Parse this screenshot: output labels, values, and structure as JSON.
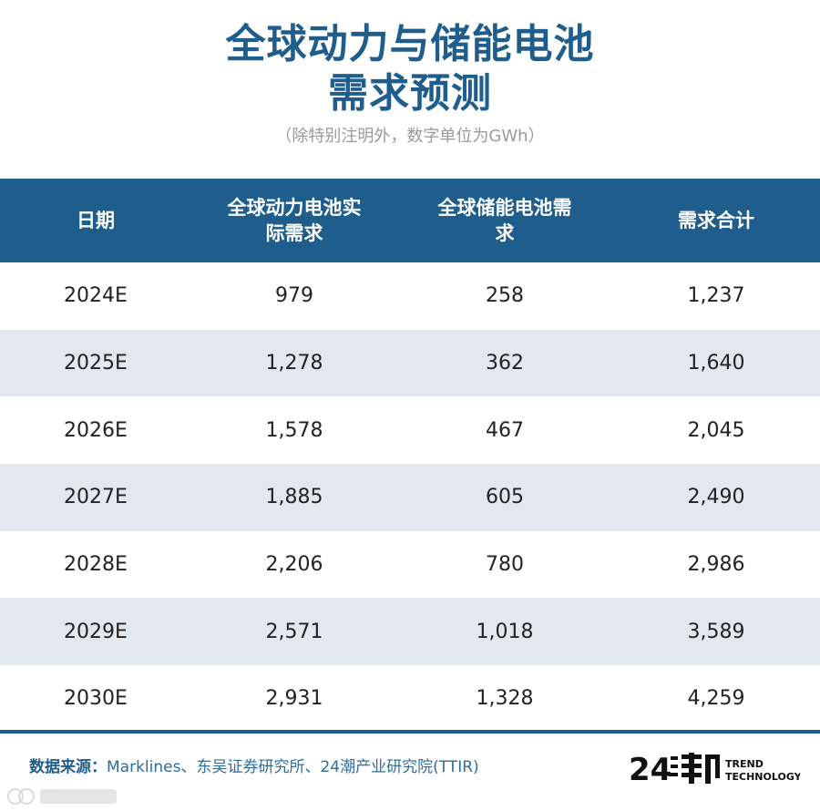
{
  "header": {
    "title_line1": "全球动力与储能电池",
    "title_line2": "需求预测",
    "subtitle": "（除特别注明外，数字单位为GWh）"
  },
  "chart_data": {
    "type": "table",
    "title": "全球动力与储能电池需求预测",
    "unit": "GWh",
    "columns": [
      "日期",
      "全球动力电池实际需求",
      "全球储能电池需求",
      "需求合计"
    ],
    "rows": [
      [
        "2024E",
        "979",
        "258",
        "1,237"
      ],
      [
        "2025E",
        "1,278",
        "362",
        "1,640"
      ],
      [
        "2026E",
        "1,578",
        "467",
        "2,045"
      ],
      [
        "2027E",
        "1,885",
        "605",
        "2,490"
      ],
      [
        "2028E",
        "2,206",
        "780",
        "2,986"
      ],
      [
        "2029E",
        "2,571",
        "1,018",
        "3,589"
      ],
      [
        "2030E",
        "2,931",
        "1,328",
        "4,259"
      ]
    ]
  },
  "footer": {
    "source_label": "数据来源：",
    "source_text": "Marklines、东吴证券研究所、24潮产业研究院(TTIR)",
    "brand_text_1": "TREND",
    "brand_text_2": "TECHNOLOGY"
  },
  "colors": {
    "brand_blue": "#1e5d8c",
    "row_stripe": "#e1e8ef"
  },
  "icons": {
    "brand_logo": "24chao-logo",
    "watermark": "watermark-logo"
  }
}
